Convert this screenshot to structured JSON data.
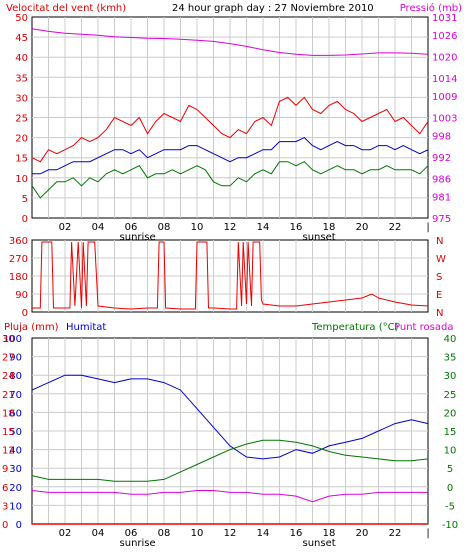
{
  "chart_data": [
    {
      "type": "line",
      "title": "24 hour graph day : 27 Noviembre 2010",
      "ylabel_left": "Velocitat del vent (kmh)",
      "ylabel_right": "Pressió (mb)",
      "x_ticks": [
        "02",
        "04",
        "06",
        "08",
        "10",
        "12",
        "14",
        "16",
        "18",
        "20",
        "22"
      ],
      "x_marks": [
        "sunrise",
        "sunset"
      ],
      "ylim_left": [
        0,
        50
      ],
      "y_ticks_left": [
        0,
        5,
        10,
        15,
        20,
        25,
        30,
        35,
        40,
        45,
        50
      ],
      "ylim_right": [
        975,
        1031
      ],
      "y_ticks_right": [
        975,
        981,
        986,
        992,
        998,
        1003,
        1009,
        1014,
        1020,
        1026,
        1031
      ],
      "grid": true,
      "colors": {
        "gust": "#ee0000",
        "average": "#0000cc",
        "low": "#007700",
        "pressure": "#dd00dd",
        "left_labels": "#dd0000",
        "right_labels": "#dd00dd"
      },
      "series": [
        {
          "color_key": "pressure",
          "axis": "right",
          "x": [
            0,
            1,
            2,
            3,
            4,
            5,
            6,
            7,
            8,
            9,
            10,
            11,
            12,
            13,
            14,
            15,
            16,
            17,
            18,
            19,
            20,
            21,
            22,
            23,
            24
          ],
          "values": [
            1027.7,
            1027.0,
            1026.5,
            1026.2,
            1025.9,
            1025.5,
            1025.3,
            1025.1,
            1025.0,
            1024.8,
            1024.5,
            1024.2,
            1023.6,
            1022.8,
            1021.9,
            1021.1,
            1020.6,
            1020.3,
            1020.3,
            1020.4,
            1020.7,
            1021.0,
            1021.0,
            1020.9,
            1020.6
          ]
        },
        {
          "color_key": "gust",
          "axis": "left",
          "x": [
            0,
            0.5,
            1,
            1.5,
            2,
            2.5,
            3,
            3.5,
            4,
            4.5,
            5,
            5.5,
            6,
            6.5,
            7,
            7.5,
            8,
            8.5,
            9,
            9.5,
            10,
            10.5,
            11,
            11.5,
            12,
            12.5,
            13,
            13.5,
            14,
            14.5,
            15,
            15.5,
            16,
            16.5,
            17,
            17.5,
            18,
            18.5,
            19,
            19.5,
            20,
            20.5,
            21,
            21.5,
            22,
            22.5,
            23,
            23.5,
            24
          ],
          "values": [
            15,
            14,
            17,
            16,
            17,
            18,
            20,
            19,
            20,
            22,
            25,
            24,
            23,
            25,
            21,
            24,
            26,
            25,
            24,
            28,
            27,
            25,
            23,
            21,
            20,
            22,
            21,
            24,
            25,
            23,
            29,
            30,
            28,
            30,
            27,
            26,
            28,
            29,
            27,
            26,
            24,
            25,
            26,
            27,
            24,
            25,
            23,
            21,
            24
          ]
        },
        {
          "color_key": "average",
          "axis": "left",
          "x": [
            0,
            0.5,
            1,
            1.5,
            2,
            2.5,
            3,
            3.5,
            4,
            4.5,
            5,
            5.5,
            6,
            6.5,
            7,
            7.5,
            8,
            8.5,
            9,
            9.5,
            10,
            10.5,
            11,
            11.5,
            12,
            12.5,
            13,
            13.5,
            14,
            14.5,
            15,
            15.5,
            16,
            16.5,
            17,
            17.5,
            18,
            18.5,
            19,
            19.5,
            20,
            20.5,
            21,
            21.5,
            22,
            22.5,
            23,
            23.5,
            24
          ],
          "values": [
            11,
            11,
            12,
            12,
            13,
            14,
            14,
            14,
            15,
            16,
            17,
            17,
            16,
            17,
            15,
            16,
            17,
            17,
            17,
            18,
            18,
            17,
            16,
            15,
            14,
            15,
            15,
            16,
            17,
            17,
            19,
            19,
            19,
            20,
            18,
            17,
            18,
            19,
            18,
            18,
            17,
            17,
            18,
            18,
            17,
            18,
            17,
            16,
            17
          ]
        },
        {
          "color_key": "low",
          "axis": "left",
          "x": [
            0,
            0.5,
            1,
            1.5,
            2,
            2.5,
            3,
            3.5,
            4,
            4.5,
            5,
            5.5,
            6,
            6.5,
            7,
            7.5,
            8,
            8.5,
            9,
            9.5,
            10,
            10.5,
            11,
            11.5,
            12,
            12.5,
            13,
            13.5,
            14,
            14.5,
            15,
            15.5,
            16,
            16.5,
            17,
            17.5,
            18,
            18.5,
            19,
            19.5,
            20,
            20.5,
            21,
            21.5,
            22,
            22.5,
            23,
            23.5,
            24
          ],
          "values": [
            8,
            5,
            7,
            9,
            9,
            10,
            8,
            10,
            9,
            11,
            12,
            11,
            12,
            13,
            10,
            11,
            11,
            12,
            11,
            12,
            13,
            12,
            9,
            8,
            8,
            10,
            9,
            11,
            12,
            11,
            14,
            14,
            13,
            14,
            12,
            11,
            12,
            13,
            12,
            12,
            11,
            12,
            12,
            13,
            12,
            12,
            12,
            11,
            13
          ]
        }
      ]
    },
    {
      "type": "line",
      "ylim": [
        0,
        360
      ],
      "y_ticks": [
        0,
        90,
        180,
        270,
        360
      ],
      "compass_labels": [
        "N",
        "W",
        "S",
        "E",
        "N"
      ],
      "grid": true,
      "colors": {
        "direction": "#ee0000"
      },
      "series": [
        {
          "color_key": "direction",
          "x": [
            0,
            0.5,
            0.6,
            1.2,
            1.3,
            2.3,
            2.4,
            2.6,
            2.8,
            3.0,
            3.1,
            3.3,
            3.4,
            3.8,
            4.0,
            5,
            6,
            7,
            7.6,
            7.7,
            8.0,
            8.1,
            9,
            9.9,
            10.0,
            10.6,
            10.7,
            11,
            12,
            12.4,
            12.5,
            12.7,
            12.8,
            13.0,
            13.1,
            13.3,
            13.4,
            13.8,
            13.9,
            14,
            15,
            16,
            17,
            18,
            19,
            20,
            20.6,
            21,
            22,
            23,
            24
          ],
          "values": [
            20,
            20,
            350,
            350,
            20,
            20,
            350,
            30,
            350,
            20,
            350,
            30,
            350,
            350,
            30,
            20,
            15,
            20,
            20,
            350,
            350,
            20,
            15,
            15,
            350,
            350,
            20,
            20,
            15,
            15,
            350,
            30,
            350,
            40,
            350,
            30,
            350,
            350,
            60,
            40,
            30,
            30,
            40,
            50,
            60,
            70,
            90,
            70,
            50,
            35,
            30
          ]
        }
      ]
    },
    {
      "type": "line",
      "ylabel_left_1": "Pluja (mm)",
      "ylabel_left_2": "Humitat",
      "ylabel_right_1": "Temperatura (°C)",
      "ylabel_right_2": "Punt rosada",
      "x_ticks": [
        "02",
        "04",
        "06",
        "08",
        "10",
        "12",
        "14",
        "16",
        "18",
        "20",
        "22"
      ],
      "x_marks": [
        "sunrise",
        "sunset"
      ],
      "ylim_humidity": [
        0,
        100
      ],
      "y_ticks_humidity": [
        0,
        10,
        20,
        30,
        40,
        50,
        60,
        70,
        80,
        90,
        100
      ],
      "ylim_rain": [
        0,
        30
      ],
      "y_ticks_rain": [
        0,
        3,
        6,
        9,
        12,
        15,
        18,
        21,
        24,
        27,
        30
      ],
      "ylim_temp": [
        -10,
        40
      ],
      "y_ticks_temp": [
        -10,
        -5,
        0,
        5,
        10,
        15,
        20,
        25,
        30,
        35,
        40
      ],
      "grid": true,
      "colors": {
        "humidity": "#0000cc",
        "temperature": "#007700",
        "dew_point": "#dd00dd",
        "rain": "#ee0000",
        "rain_labels": "#dd0000",
        "humidity_labels": "#0000cc",
        "temp_labels": "#007700",
        "dew_labels": "#dd00dd"
      },
      "series": [
        {
          "color_key": "humidity",
          "axis": "humidity",
          "x": [
            0,
            1,
            2,
            3,
            4,
            5,
            6,
            7,
            8,
            9,
            10,
            11,
            12,
            13,
            14,
            15,
            16,
            17,
            18,
            19,
            20,
            21,
            22,
            23,
            24
          ],
          "values": [
            72,
            76,
            80,
            80,
            78,
            76,
            78,
            78,
            76,
            72,
            62,
            52,
            42,
            36,
            35,
            36,
            40,
            38,
            42,
            44,
            46,
            50,
            54,
            56,
            54
          ]
        },
        {
          "color_key": "temperature",
          "axis": "temp",
          "x": [
            0,
            1,
            2,
            3,
            4,
            5,
            6,
            7,
            8,
            9,
            10,
            11,
            12,
            13,
            14,
            15,
            16,
            17,
            18,
            19,
            20,
            21,
            22,
            23,
            24
          ],
          "values": [
            3,
            2,
            2,
            2,
            2,
            1.5,
            1.5,
            1.5,
            2,
            4,
            6,
            8,
            10,
            11.5,
            12.5,
            12.5,
            12,
            11,
            9.5,
            8.5,
            8,
            7.5,
            7,
            7,
            7.5
          ]
        },
        {
          "color_key": "dew_point",
          "axis": "temp",
          "x": [
            0,
            1,
            2,
            3,
            4,
            5,
            6,
            7,
            8,
            9,
            10,
            11,
            12,
            13,
            14,
            15,
            16,
            17,
            18,
            19,
            20,
            21,
            22,
            23,
            24
          ],
          "values": [
            -1,
            -1.5,
            -1.5,
            -1.5,
            -1.5,
            -1.5,
            -2,
            -2,
            -1.5,
            -1.5,
            -1,
            -1,
            -1.5,
            -1.5,
            -2,
            -2,
            -2.5,
            -4,
            -2.5,
            -2,
            -2,
            -1.5,
            -1.5,
            -1.5,
            -1.5
          ]
        },
        {
          "color_key": "rain",
          "axis": "rain",
          "x": [
            0,
            24
          ],
          "values": [
            0,
            0
          ]
        }
      ]
    }
  ]
}
